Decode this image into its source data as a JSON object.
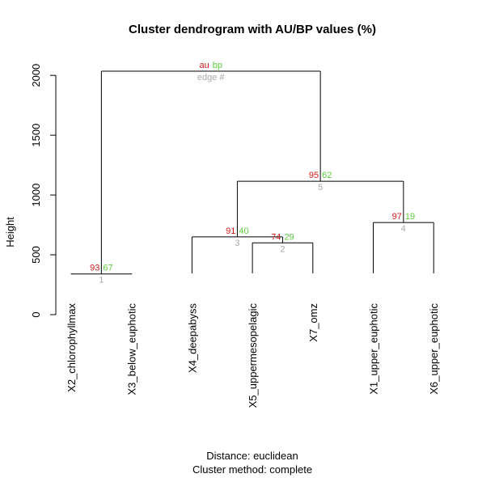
{
  "chart_data": {
    "type": "dendrogram",
    "title": "Cluster dendrogram with AU/BP values (%)",
    "ylabel": "Height",
    "ylim": [
      0,
      2150
    ],
    "yticks": [
      0,
      500,
      1000,
      1500,
      2000
    ],
    "subtitle_lines": [
      "Distance:  euclidean",
      "Cluster method: complete"
    ],
    "leaves": [
      "X2_chlorophyllmax",
      "X3_below_euphotic",
      "X4_deepabyss",
      "X5_uppermesopelagic",
      "X7_omz",
      "X1_upper_euphotic",
      "X6_upper_euphotic"
    ],
    "merges": [
      {
        "edge": "1",
        "height": 340,
        "left": "X2_chlorophyllmax",
        "right": "X3_below_euphotic",
        "au": "93",
        "bp": "67"
      },
      {
        "edge": "2",
        "height": 600,
        "left": "X5_uppermesopelagic",
        "right": "X7_omz",
        "au": "74",
        "bp": "29"
      },
      {
        "edge": "3",
        "height": 650,
        "left": "X4_deepabyss",
        "right": "node2",
        "au": "91",
        "bp": "40"
      },
      {
        "edge": "4",
        "height": 770,
        "left": "X1_upper_euphotic",
        "right": "X6_upper_euphotic",
        "au": "97",
        "bp": "19"
      },
      {
        "edge": "5",
        "height": 1115,
        "left": "node3",
        "right": "node4",
        "au": "95",
        "bp": "62"
      },
      {
        "edge": "",
        "height": 2035,
        "left": "node1",
        "right": "node5",
        "au": "",
        "bp": ""
      }
    ],
    "legend": {
      "au": "au",
      "bp": "bp",
      "edge": "edge #"
    },
    "colors": {
      "au": "#d21a1a",
      "bp": "#5ccc3c",
      "edge": "#a8a8a8",
      "line": "#000000"
    }
  }
}
